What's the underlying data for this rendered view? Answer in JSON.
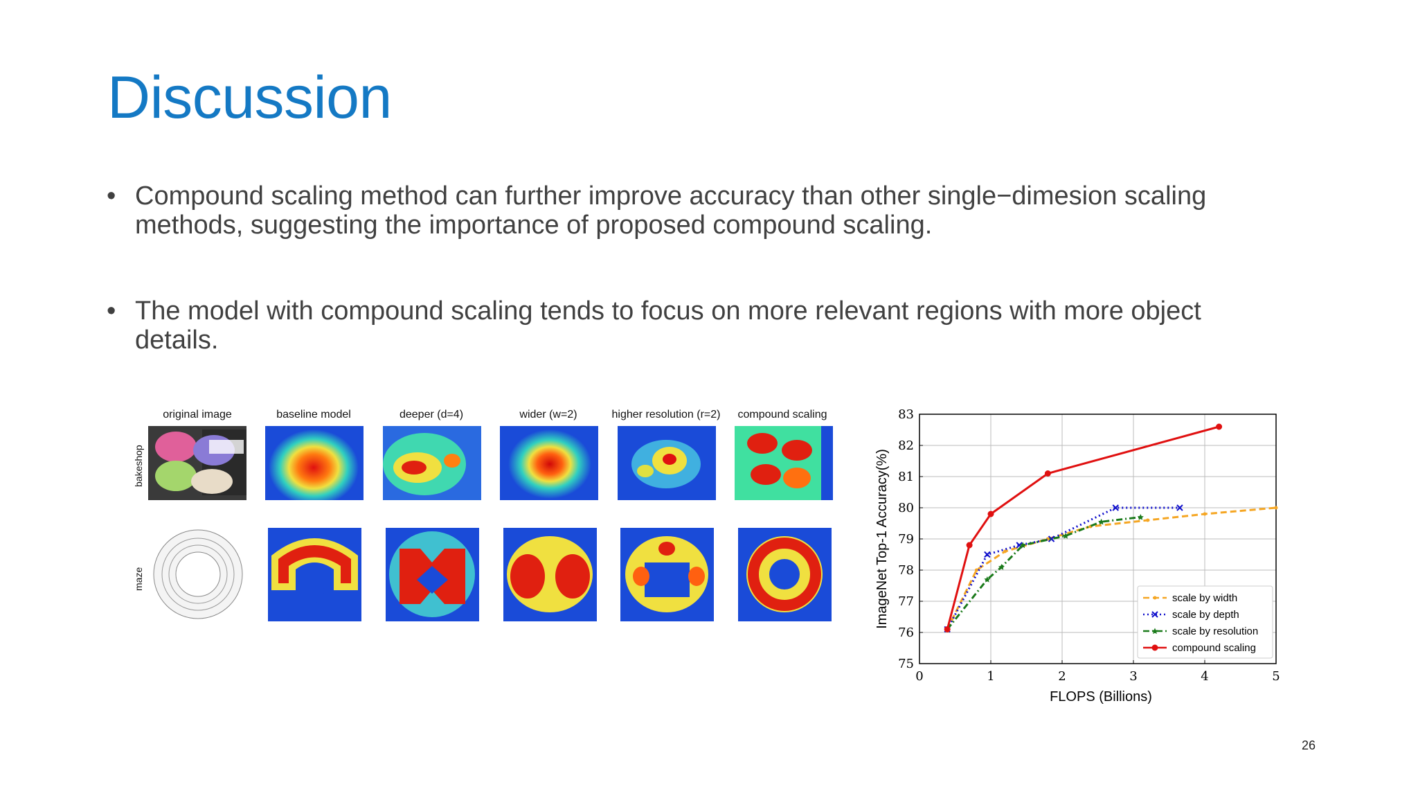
{
  "slide": {
    "title": "Discussion",
    "bullets": [
      "Compound scaling method can further improve accuracy than other single−dimesion scaling methods, suggesting the importance of proposed compound scaling.",
      "The model with compound scaling tends to focus on more relevant regions with more object details."
    ],
    "page_number": "26"
  },
  "figure": {
    "columns": [
      "original image",
      "baseline model",
      "deeper (d=4)",
      "wider (w=2)",
      "higher resolution (r=2)",
      "compound scaling"
    ],
    "rows": [
      "bakeshop",
      "maze"
    ]
  },
  "chart_data": {
    "type": "line",
    "xlabel": "FLOPS (Billions)",
    "ylabel": "ImageNet Top-1 Accuracy(%)",
    "xlim": [
      0,
      5
    ],
    "ylim": [
      75,
      83
    ],
    "xticks": [
      "0",
      "1",
      "2",
      "3",
      "4",
      "5"
    ],
    "yticks": [
      "75",
      "76",
      "77",
      "78",
      "79",
      "80",
      "81",
      "82",
      "83"
    ],
    "grid": true,
    "legend_position": "bottom-right",
    "series": [
      {
        "name": "scale by width",
        "color": "#f5a623",
        "style": "dashed",
        "marker": "dot",
        "points": [
          [
            0.39,
            76.1
          ],
          [
            0.8,
            78.0
          ],
          [
            1.2,
            78.6
          ],
          [
            1.8,
            79.0
          ],
          [
            2.4,
            79.4
          ],
          [
            3.2,
            79.6
          ],
          [
            4.0,
            79.8
          ],
          [
            5.0,
            80.0
          ]
        ]
      },
      {
        "name": "scale by depth",
        "color": "#1010cc",
        "style": "dotted",
        "marker": "x",
        "points": [
          [
            0.39,
            76.1
          ],
          [
            0.95,
            78.5
          ],
          [
            1.4,
            78.8
          ],
          [
            1.85,
            79.0
          ],
          [
            2.75,
            80.0
          ],
          [
            3.65,
            80.0
          ]
        ]
      },
      {
        "name": "scale by resolution",
        "color": "#1a7a1a",
        "style": "dashdot",
        "marker": "star",
        "points": [
          [
            0.39,
            76.1
          ],
          [
            0.95,
            77.7
          ],
          [
            1.15,
            78.1
          ],
          [
            1.45,
            78.8
          ],
          [
            2.05,
            79.1
          ],
          [
            2.55,
            79.55
          ],
          [
            3.1,
            79.7
          ]
        ]
      },
      {
        "name": "compound scaling",
        "color": "#e01010",
        "style": "solid",
        "marker": "dot",
        "points": [
          [
            0.39,
            76.1
          ],
          [
            0.7,
            78.8
          ],
          [
            1.0,
            79.8
          ],
          [
            1.8,
            81.1
          ],
          [
            4.2,
            82.6
          ]
        ]
      }
    ]
  }
}
